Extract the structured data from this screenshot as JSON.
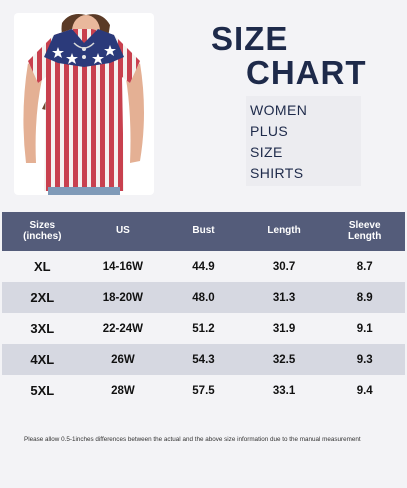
{
  "title": {
    "line1": "SIZE",
    "line2": "CHART"
  },
  "subtitle": [
    "WOMEN",
    "PLUS",
    "SIZE",
    "SHIRTS"
  ],
  "photo": {
    "icon": "shirt-photo",
    "shirt_colors": {
      "red": "#c8404e",
      "navy": "#2b3a7a",
      "white": "#f4f1ef"
    }
  },
  "table": {
    "header_bg": "#545c7a",
    "alt_row_bg": "#d6d8e1",
    "columns": [
      {
        "line1": "Sizes",
        "line2": "(inches)"
      },
      {
        "line1": "US",
        "line2": ""
      },
      {
        "line1": "Bust",
        "line2": ""
      },
      {
        "line1": "Length",
        "line2": ""
      },
      {
        "line1": "Sleeve",
        "line2": "Length"
      }
    ],
    "rows": [
      {
        "size": "XL",
        "us": "14-16W",
        "bust": "44.9",
        "length": "30.7",
        "sleeve": "8.7"
      },
      {
        "size": "2XL",
        "us": "18-20W",
        "bust": "48.0",
        "length": "31.3",
        "sleeve": "8.9"
      },
      {
        "size": "3XL",
        "us": "22-24W",
        "bust": "51.2",
        "length": "31.9",
        "sleeve": "9.1"
      },
      {
        "size": "4XL",
        "us": "26W",
        "bust": "54.3",
        "length": "32.5",
        "sleeve": "9.3"
      },
      {
        "size": "5XL",
        "us": "28W",
        "bust": "57.5",
        "length": "33.1",
        "sleeve": "9.4"
      }
    ]
  },
  "note": "Please allow 0.5-1inches differences between the actual and the above size information due to the manual measurement"
}
